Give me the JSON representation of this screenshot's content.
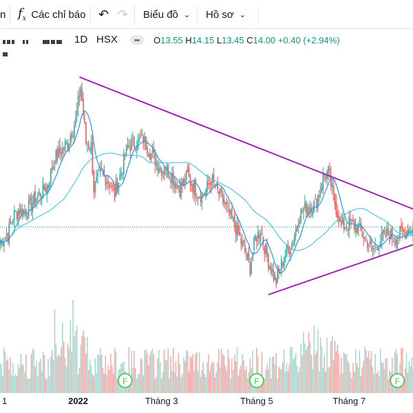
{
  "toolbar": {
    "partial_item": "n",
    "indicators_label": "Các chỉ báo",
    "chart_menu_label": "Biểu đồ",
    "profile_menu_label": "Hồ sơ"
  },
  "legend": {
    "interval": "1D",
    "exchange": "HSX",
    "o_label": "O",
    "o_value": "13.55",
    "h_label": "H",
    "h_value": "14.15",
    "l_label": "L",
    "l_value": "13.45",
    "c_label": "C",
    "c_value": "14.00",
    "change": "+0.40",
    "change_pct": "(+2.94%)"
  },
  "colors": {
    "up": "#26a69a",
    "down": "#ef5350",
    "vol_up": "#9fd8cf",
    "vol_down": "#f4a7a5",
    "ma_fast": "#2196f3",
    "ma_slow": "#4fc3e8",
    "trendline": "#9c27b0",
    "accent_green": "#089981"
  },
  "xaxis": {
    "labels": [
      {
        "text": "1",
        "date": "2021-12"
      },
      {
        "text": "2022",
        "date": "2022-01"
      },
      {
        "text": "Tháng 3",
        "date": "2022-03"
      },
      {
        "text": "Tháng 5",
        "date": "2022-05"
      },
      {
        "text": "Tháng 7",
        "date": "2022-07"
      }
    ]
  },
  "event_markers": [
    {
      "label": "F",
      "date": "2022-02"
    },
    {
      "label": "F",
      "date": "2022-05"
    },
    {
      "label": "F",
      "date": "2022-08"
    }
  ],
  "chart_data": {
    "type": "candlestick",
    "last_close": 14.0,
    "price_anchors": [
      [
        0,
        13.2
      ],
      [
        6,
        13.6
      ],
      [
        10,
        14.6
      ],
      [
        14,
        14.9
      ],
      [
        20,
        14.9
      ],
      [
        30,
        15.8
      ],
      [
        36,
        16.2
      ],
      [
        42,
        17.7
      ],
      [
        52,
        18.6
      ],
      [
        58,
        19.8
      ],
      [
        62,
        21.7
      ],
      [
        66,
        18.6
      ],
      [
        70,
        18.4
      ],
      [
        72,
        16.1
      ],
      [
        78,
        17.0
      ],
      [
        84,
        16.4
      ],
      [
        88,
        15.8
      ],
      [
        92,
        16.8
      ],
      [
        98,
        18.4
      ],
      [
        104,
        18.6
      ],
      [
        110,
        18.8
      ],
      [
        116,
        18.0
      ],
      [
        124,
        17.2
      ],
      [
        130,
        17.0
      ],
      [
        138,
        16.1
      ],
      [
        144,
        16.8
      ],
      [
        150,
        16.0
      ],
      [
        156,
        15.7
      ],
      [
        162,
        16.6
      ],
      [
        166,
        16.0
      ],
      [
        170,
        15.6
      ],
      [
        176,
        14.6
      ],
      [
        182,
        13.8
      ],
      [
        188,
        12.6
      ],
      [
        192,
        11.8
      ],
      [
        196,
        13.4
      ],
      [
        200,
        13.8
      ],
      [
        206,
        12.1
      ],
      [
        212,
        11.0
      ],
      [
        218,
        12.4
      ],
      [
        224,
        13.1
      ],
      [
        230,
        14.7
      ],
      [
        236,
        15.2
      ],
      [
        242,
        15.2
      ],
      [
        248,
        16.7
      ],
      [
        252,
        17.0
      ],
      [
        256,
        15.6
      ],
      [
        262,
        14.0
      ],
      [
        268,
        14.2
      ],
      [
        274,
        14.0
      ],
      [
        280,
        13.4
      ],
      [
        286,
        12.7
      ],
      [
        292,
        13.3
      ],
      [
        298,
        13.6
      ],
      [
        304,
        13.4
      ],
      [
        310,
        13.7
      ],
      [
        316,
        14.0
      ]
    ],
    "trendlines": [
      {
        "name": "upper",
        "from": {
          "bar": 61,
          "price": 22.2
        },
        "to": {
          "bar": 320,
          "price": 14.9
        }
      },
      {
        "name": "lower",
        "from": {
          "bar": 206,
          "price": 10.3
        },
        "to": {
          "bar": 320,
          "price": 13.1
        }
      }
    ],
    "moving_averages": [
      {
        "period": 10
      },
      {
        "period": 50
      }
    ],
    "horizontal_line_price": 14.0,
    "y_range": [
      10.0,
      22.8
    ]
  }
}
